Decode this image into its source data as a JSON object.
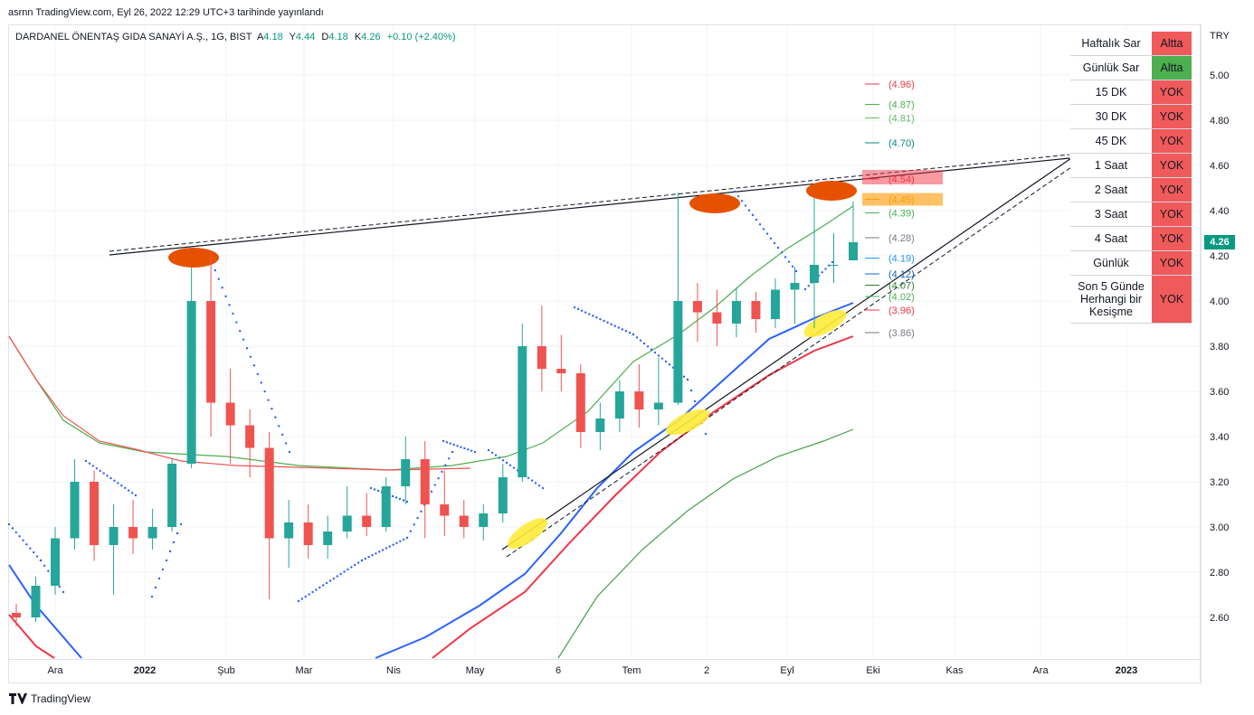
{
  "header": {
    "published_line": "asrnn TradingView.com, Eyl 26, 2022 12:29 UTC+3 tarihinde yayınlandı"
  },
  "legend": {
    "symbol": "DARDANEL ÖNENTAŞ GIDA SANAYİ A.Ş., 1G, BIST",
    "open_label": "A",
    "open": "4.18",
    "high_label": "Y",
    "high": "4.44",
    "low_label": "D",
    "low": "4.18",
    "close_label": "K",
    "close": "4.26",
    "change": "+0.10 (+2.40%)",
    "up_color": "#089981"
  },
  "price_axis": {
    "currency": "TRY",
    "ticks": [
      "5.00",
      "4.80",
      "4.60",
      "4.40",
      "4.20",
      "4.00",
      "3.80",
      "3.60",
      "3.40",
      "3.20",
      "3.00",
      "2.80",
      "2.60"
    ],
    "last_price": "4.26",
    "last_color": "#089981"
  },
  "time_axis": {
    "ticks": [
      "Ara",
      "2022",
      "Şub",
      "Mar",
      "Nis",
      "May",
      "6",
      "Tem",
      "2",
      "Eyl",
      "Eki",
      "Kas",
      "Ara",
      "2023"
    ],
    "bold": [
      "2022",
      "2023"
    ]
  },
  "levels": [
    {
      "label": "(4.96)",
      "price": 4.96,
      "color": "#f23645"
    },
    {
      "label": "(4.87)",
      "price": 4.87,
      "color": "#4caf50"
    },
    {
      "label": "(4.81)",
      "price": 4.81,
      "color": "#66bb6a"
    },
    {
      "label": "(4.70)",
      "price": 4.7,
      "color": "#00897b"
    },
    {
      "label": "(4.54)",
      "price": 4.54,
      "color": "#f23645"
    },
    {
      "label": "(4.45)",
      "price": 4.45,
      "color": "#ff9800"
    },
    {
      "label": "(4.39)",
      "price": 4.39,
      "color": "#4caf50"
    },
    {
      "label": "(4.28)",
      "price": 4.28,
      "color": "#787b86"
    },
    {
      "label": "(4.19)",
      "price": 4.19,
      "color": "#2196f3"
    },
    {
      "label": "(4.12)",
      "price": 4.12,
      "color": "#1565c0"
    },
    {
      "label": "(4.07)",
      "price": 4.07,
      "color": "#2e7d32"
    },
    {
      "label": "(4.02)",
      "price": 4.02,
      "color": "#4caf50"
    },
    {
      "label": "(3.96)",
      "price": 3.96,
      "color": "#f23645"
    },
    {
      "label": "(3.86)",
      "price": 3.86,
      "color": "#787b86"
    }
  ],
  "status_table": {
    "rows": [
      {
        "label": "Haftalık Sar",
        "value": "Altta",
        "color": "#f05a5a"
      },
      {
        "label": "Günlük Sar",
        "value": "Altta",
        "color": "#4caf50"
      },
      {
        "label": "15 DK",
        "value": "YOK",
        "color": "#f05a5a"
      },
      {
        "label": "30 DK",
        "value": "YOK",
        "color": "#f05a5a"
      },
      {
        "label": "45 DK",
        "value": "YOK",
        "color": "#f05a5a"
      },
      {
        "label": "1 Saat",
        "value": "YOK",
        "color": "#f05a5a"
      },
      {
        "label": "2 Saat",
        "value": "YOK",
        "color": "#f05a5a"
      },
      {
        "label": "3 Saat",
        "value": "YOK",
        "color": "#f05a5a"
      },
      {
        "label": "4 Saat",
        "value": "YOK",
        "color": "#f05a5a"
      },
      {
        "label": "Günlük",
        "value": "YOK",
        "color": "#f05a5a"
      },
      {
        "label": "Son 5 Günde Herhangi bir Kesişme",
        "value": "YOK",
        "color": "#f05a5a"
      }
    ]
  },
  "footer": {
    "brand": "TradingView"
  },
  "chart_data": {
    "type": "candlestick",
    "interval": "1G",
    "y_range": [
      2.42,
      5.2
    ],
    "up_color": "#26a69a",
    "down_color": "#ef5350",
    "candles": [
      {
        "d": "2021-12-01",
        "o": 2.62,
        "h": 2.66,
        "l": 2.56,
        "c": 2.6
      },
      {
        "d": "2021-12-08",
        "o": 2.6,
        "h": 2.78,
        "l": 2.58,
        "c": 2.74
      },
      {
        "d": "2021-12-15",
        "o": 2.74,
        "h": 3.0,
        "l": 2.7,
        "c": 2.95
      },
      {
        "d": "2021-12-22",
        "o": 2.95,
        "h": 3.3,
        "l": 2.9,
        "c": 3.2
      },
      {
        "d": "2021-12-29",
        "o": 3.2,
        "h": 3.25,
        "l": 2.85,
        "c": 2.92
      },
      {
        "d": "2022-01-05",
        "o": 2.92,
        "h": 3.1,
        "l": 2.7,
        "c": 3.0
      },
      {
        "d": "2022-01-12",
        "o": 3.0,
        "h": 3.12,
        "l": 2.88,
        "c": 2.95
      },
      {
        "d": "2022-01-19",
        "o": 2.95,
        "h": 3.08,
        "l": 2.9,
        "c": 3.0
      },
      {
        "d": "2022-01-26",
        "o": 3.0,
        "h": 3.3,
        "l": 2.98,
        "c": 3.28
      },
      {
        "d": "2022-02-01",
        "o": 3.28,
        "h": 4.15,
        "l": 3.26,
        "c": 4.0
      },
      {
        "d": "2022-02-08",
        "o": 4.0,
        "h": 4.22,
        "l": 3.4,
        "c": 3.55
      },
      {
        "d": "2022-02-15",
        "o": 3.55,
        "h": 3.7,
        "l": 3.28,
        "c": 3.45
      },
      {
        "d": "2022-02-22",
        "o": 3.45,
        "h": 3.52,
        "l": 3.22,
        "c": 3.35
      },
      {
        "d": "2022-03-01",
        "o": 3.35,
        "h": 3.42,
        "l": 2.68,
        "c": 2.95
      },
      {
        "d": "2022-03-08",
        "o": 2.95,
        "h": 3.12,
        "l": 2.82,
        "c": 3.02
      },
      {
        "d": "2022-03-15",
        "o": 3.02,
        "h": 3.1,
        "l": 2.86,
        "c": 2.92
      },
      {
        "d": "2022-03-22",
        "o": 2.92,
        "h": 3.05,
        "l": 2.86,
        "c": 2.98
      },
      {
        "d": "2022-03-29",
        "o": 2.98,
        "h": 3.18,
        "l": 2.95,
        "c": 3.05
      },
      {
        "d": "2022-04-05",
        "o": 3.05,
        "h": 3.15,
        "l": 2.96,
        "c": 3.0
      },
      {
        "d": "2022-04-12",
        "o": 3.0,
        "h": 3.22,
        "l": 2.98,
        "c": 3.18
      },
      {
        "d": "2022-04-19",
        "o": 3.18,
        "h": 3.4,
        "l": 3.1,
        "c": 3.3
      },
      {
        "d": "2022-04-26",
        "o": 3.3,
        "h": 3.38,
        "l": 2.95,
        "c": 3.1
      },
      {
        "d": "2022-05-03",
        "o": 3.1,
        "h": 3.25,
        "l": 2.96,
        "c": 3.05
      },
      {
        "d": "2022-05-10",
        "o": 3.05,
        "h": 3.12,
        "l": 2.95,
        "c": 3.0
      },
      {
        "d": "2022-05-17",
        "o": 3.0,
        "h": 3.1,
        "l": 2.94,
        "c": 3.06
      },
      {
        "d": "2022-05-24",
        "o": 3.06,
        "h": 3.28,
        "l": 3.02,
        "c": 3.22
      },
      {
        "d": "2022-05-31",
        "o": 3.22,
        "h": 3.9,
        "l": 3.2,
        "c": 3.8
      },
      {
        "d": "2022-06-07",
        "o": 3.8,
        "h": 3.98,
        "l": 3.6,
        "c": 3.7
      },
      {
        "d": "2022-06-14",
        "o": 3.7,
        "h": 3.85,
        "l": 3.6,
        "c": 3.68
      },
      {
        "d": "2022-06-21",
        "o": 3.68,
        "h": 3.72,
        "l": 3.35,
        "c": 3.42
      },
      {
        "d": "2022-06-28",
        "o": 3.42,
        "h": 3.55,
        "l": 3.34,
        "c": 3.48
      },
      {
        "d": "2022-07-05",
        "o": 3.48,
        "h": 3.65,
        "l": 3.42,
        "c": 3.6
      },
      {
        "d": "2022-07-12",
        "o": 3.6,
        "h": 3.72,
        "l": 3.44,
        "c": 3.52
      },
      {
        "d": "2022-07-19",
        "o": 3.52,
        "h": 3.75,
        "l": 3.45,
        "c": 3.55
      },
      {
        "d": "2022-07-26",
        "o": 3.55,
        "h": 4.48,
        "l": 3.54,
        "c": 4.0
      },
      {
        "d": "2022-08-02",
        "o": 4.0,
        "h": 4.08,
        "l": 3.82,
        "c": 3.95
      },
      {
        "d": "2022-08-09",
        "o": 3.95,
        "h": 4.05,
        "l": 3.8,
        "c": 3.9
      },
      {
        "d": "2022-08-16",
        "o": 3.9,
        "h": 4.06,
        "l": 3.84,
        "c": 4.0
      },
      {
        "d": "2022-08-23",
        "o": 4.0,
        "h": 4.04,
        "l": 3.86,
        "c": 3.92
      },
      {
        "d": "2022-08-30",
        "o": 3.92,
        "h": 4.1,
        "l": 3.88,
        "c": 4.05
      },
      {
        "d": "2022-09-06",
        "o": 4.05,
        "h": 4.15,
        "l": 3.9,
        "c": 4.08
      },
      {
        "d": "2022-09-13",
        "o": 4.08,
        "h": 4.46,
        "l": 3.88,
        "c": 4.16
      },
      {
        "d": "2022-09-20",
        "o": 4.16,
        "h": 4.3,
        "l": 4.08,
        "c": 4.16
      },
      {
        "d": "2022-09-26",
        "o": 4.18,
        "h": 4.44,
        "l": 4.18,
        "c": 4.26
      }
    ]
  }
}
